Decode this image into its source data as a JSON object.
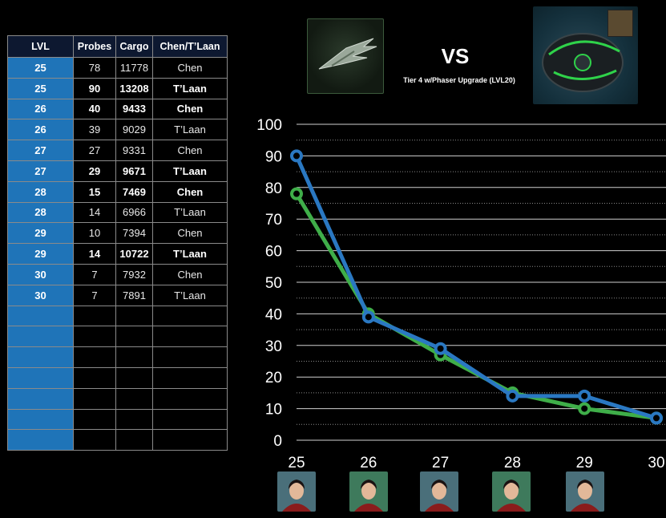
{
  "table": {
    "headers": [
      "LVL",
      "Probes",
      "Cargo",
      "Chen/T’Laan"
    ],
    "rows": [
      {
        "lvl": "25",
        "probes": "78",
        "cargo": "11778",
        "crew": "Chen",
        "bold": false
      },
      {
        "lvl": "25",
        "probes": "90",
        "cargo": "13208",
        "crew": "T’Laan",
        "bold": true
      },
      {
        "lvl": "26",
        "probes": "40",
        "cargo": "9433",
        "crew": "Chen",
        "bold": true
      },
      {
        "lvl": "26",
        "probes": "39",
        "cargo": "9029",
        "crew": "T’Laan",
        "bold": false
      },
      {
        "lvl": "27",
        "probes": "27",
        "cargo": "9331",
        "crew": "Chen",
        "bold": false
      },
      {
        "lvl": "27",
        "probes": "29",
        "cargo": "9671",
        "crew": "T’Laan",
        "bold": true
      },
      {
        "lvl": "28",
        "probes": "15",
        "cargo": "7469",
        "crew": "Chen",
        "bold": true
      },
      {
        "lvl": "28",
        "probes": "14",
        "cargo": "6966",
        "crew": "T’Laan",
        "bold": false
      },
      {
        "lvl": "29",
        "probes": "10",
        "cargo": "7394",
        "crew": "Chen",
        "bold": false
      },
      {
        "lvl": "29",
        "probes": "14",
        "cargo": "10722",
        "crew": "T’Laan",
        "bold": true
      },
      {
        "lvl": "30",
        "probes": "7",
        "cargo": "7932",
        "crew": "Chen",
        "bold": false
      },
      {
        "lvl": "30",
        "probes": "7",
        "cargo": "7891",
        "crew": "T’Laan",
        "bold": false
      }
    ],
    "empty_rows": 7
  },
  "header": {
    "vs": "VS",
    "subtitle": "Tier 4 w/Phaser Upgrade (LVL20)"
  },
  "colors": {
    "table_header_bg": "#0d1830",
    "lvl_cell_bg": "#1f74b8",
    "series_blue": "#2a78c2",
    "series_green": "#3fae49",
    "background": "#000000"
  },
  "chart_data": {
    "type": "line",
    "categories": [
      "25",
      "26",
      "27",
      "28",
      "29",
      "30"
    ],
    "series": [
      {
        "color": "#3fae49",
        "values": [
          78,
          40,
          27,
          15,
          10,
          7
        ]
      },
      {
        "color": "#2a78c2",
        "values": [
          90,
          39,
          29,
          14,
          14,
          7
        ]
      }
    ],
    "ylim": [
      0,
      100
    ],
    "yticks": [
      0,
      10,
      20,
      30,
      40,
      50,
      60,
      70,
      80,
      90,
      100
    ],
    "grid": true,
    "minor_grid_dotted": true,
    "legend": "none",
    "x_axis_icons": [
      "officer-portrait",
      "officer-portrait",
      "officer-portrait",
      "officer-portrait",
      "officer-portrait"
    ]
  }
}
